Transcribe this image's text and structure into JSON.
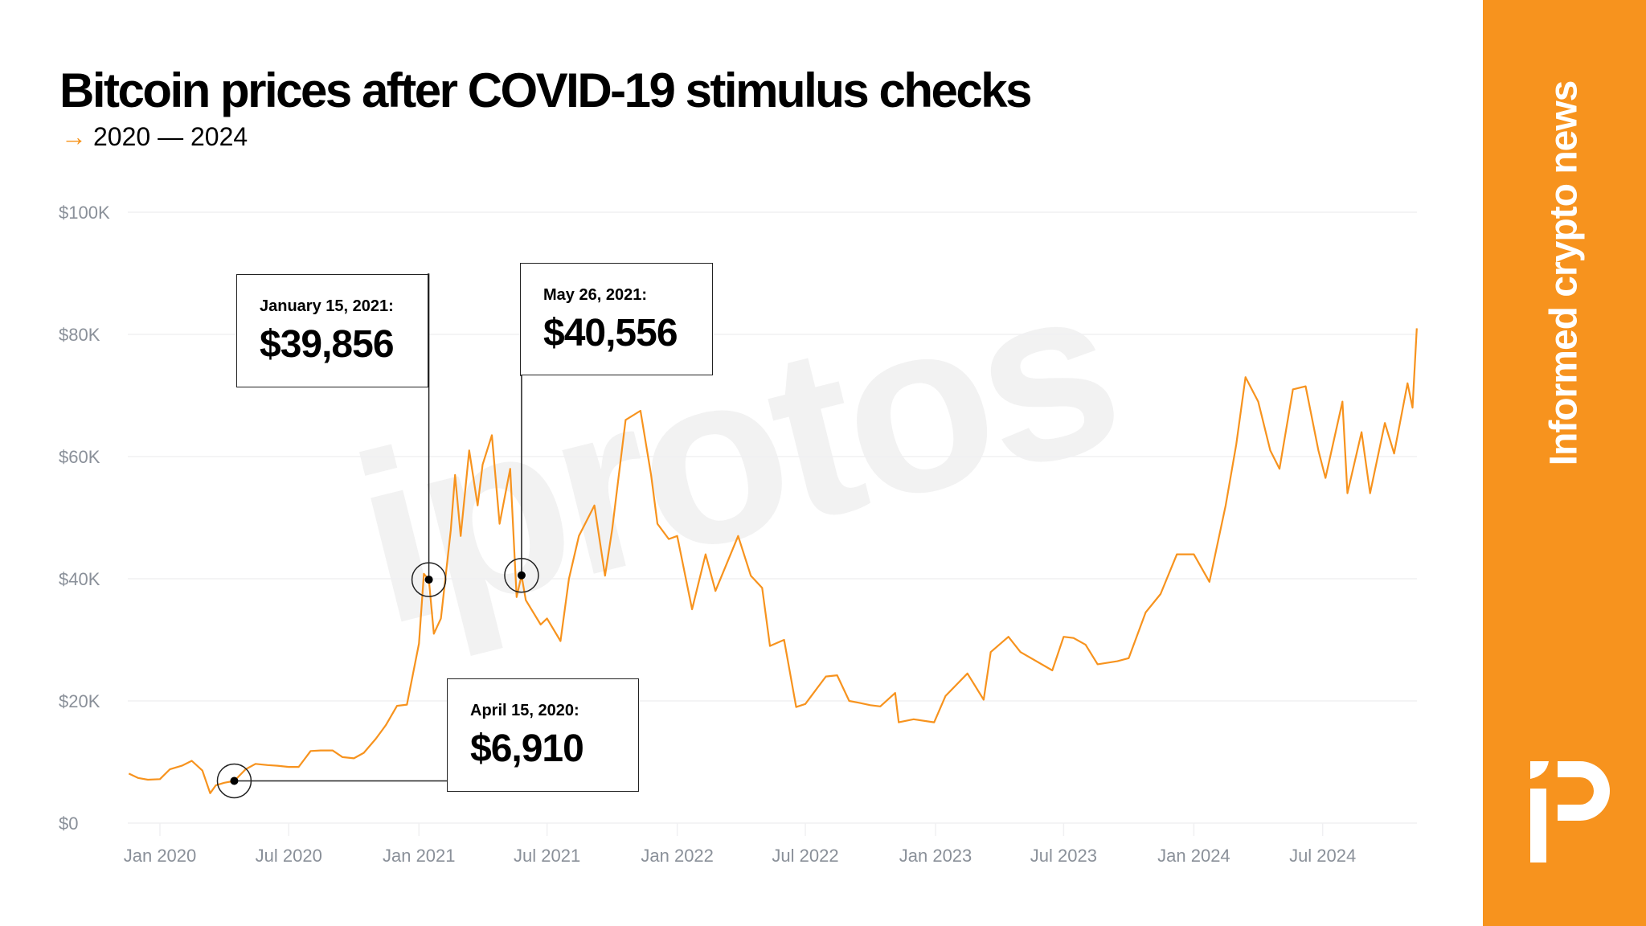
{
  "header": {
    "title": "Bitcoin prices after COVID-19 stimulus checks",
    "subtitle": "2020 — 2024",
    "subtitle_icon": "arrow-right-icon"
  },
  "brand": {
    "tagline": "Informed crypto news",
    "watermark": "iprotos",
    "logo": "protos-logo",
    "accent": "#f7931e"
  },
  "chart_data": {
    "type": "line",
    "title": "Bitcoin prices after COVID-19 stimulus checks",
    "xlabel": "",
    "ylabel": "",
    "ylim": [
      0,
      100000
    ],
    "y_ticks": [
      {
        "v": 0,
        "label": "$0"
      },
      {
        "v": 20000,
        "label": "$20K"
      },
      {
        "v": 40000,
        "label": "$40K"
      },
      {
        "v": 60000,
        "label": "$60K"
      },
      {
        "v": 80000,
        "label": "$80K"
      },
      {
        "v": 100000,
        "label": "$100K"
      }
    ],
    "x_ticks": [
      {
        "d": "2020-01-01",
        "label": "Jan 2020"
      },
      {
        "d": "2020-07-01",
        "label": "Jul 2020"
      },
      {
        "d": "2021-01-01",
        "label": "Jan 2021"
      },
      {
        "d": "2021-07-01",
        "label": "Jul 2021"
      },
      {
        "d": "2022-01-01",
        "label": "Jan 2022"
      },
      {
        "d": "2022-07-01",
        "label": "Jul 2022"
      },
      {
        "d": "2023-01-01",
        "label": "Jan 2023"
      },
      {
        "d": "2023-07-01",
        "label": "Jul 2023"
      },
      {
        "d": "2024-01-01",
        "label": "Jan 2024"
      },
      {
        "d": "2024-07-01",
        "label": "Jul 2024"
      }
    ],
    "grid": true,
    "line_color": "#f7931e",
    "series": [
      {
        "x": [
          "2019-11-18",
          "2019-12-01",
          "2019-12-15",
          "2020-01-01",
          "2020-01-15",
          "2020-02-01",
          "2020-02-15",
          "2020-03-01",
          "2020-03-12",
          "2020-03-20",
          "2020-04-01",
          "2020-04-15",
          "2020-05-01",
          "2020-05-15",
          "2020-06-01",
          "2020-06-15",
          "2020-07-01",
          "2020-07-15",
          "2020-08-01",
          "2020-08-15",
          "2020-09-01",
          "2020-09-15",
          "2020-10-01",
          "2020-10-15",
          "2020-11-01",
          "2020-11-15",
          "2020-12-01",
          "2020-12-15",
          "2021-01-01",
          "2021-01-08",
          "2021-01-15",
          "2021-01-22",
          "2021-02-01",
          "2021-02-15",
          "2021-02-21",
          "2021-03-01",
          "2021-03-13",
          "2021-03-25",
          "2021-04-01",
          "2021-04-14",
          "2021-04-25",
          "2021-05-10",
          "2021-05-19",
          "2021-05-26",
          "2021-06-01",
          "2021-06-22",
          "2021-07-01",
          "2021-07-20",
          "2021-08-01",
          "2021-08-15",
          "2021-09-06",
          "2021-09-21",
          "2021-10-01",
          "2021-10-20",
          "2021-11-10",
          "2021-11-25",
          "2021-12-04",
          "2021-12-20",
          "2022-01-01",
          "2022-01-22",
          "2022-02-10",
          "2022-02-24",
          "2022-03-28",
          "2022-04-15",
          "2022-05-01",
          "2022-05-12",
          "2022-06-01",
          "2022-06-18",
          "2022-07-01",
          "2022-07-30",
          "2022-08-15",
          "2022-09-01",
          "2022-09-15",
          "2022-10-01",
          "2022-10-15",
          "2022-11-05",
          "2022-11-10",
          "2022-12-01",
          "2022-12-30",
          "2023-01-15",
          "2023-02-15",
          "2023-03-10",
          "2023-03-20",
          "2023-04-14",
          "2023-05-01",
          "2023-06-15",
          "2023-07-01",
          "2023-07-15",
          "2023-08-01",
          "2023-08-18",
          "2023-09-15",
          "2023-10-01",
          "2023-10-25",
          "2023-11-15",
          "2023-12-08",
          "2024-01-01",
          "2024-01-23",
          "2024-02-15",
          "2024-03-01",
          "2024-03-14",
          "2024-04-01",
          "2024-04-18",
          "2024-05-01",
          "2024-05-20",
          "2024-06-07",
          "2024-06-25",
          "2024-07-05",
          "2024-07-29",
          "2024-08-05",
          "2024-08-25",
          "2024-09-06",
          "2024-09-27",
          "2024-10-10",
          "2024-10-29",
          "2024-11-05",
          "2024-11-11"
        ],
        "y": [
          8100,
          7400,
          7100,
          7200,
          8800,
          9400,
          10200,
          8600,
          4900,
          6200,
          6600,
          6910,
          8800,
          9700,
          9500,
          9400,
          9200,
          9200,
          11800,
          11900,
          11900,
          10800,
          10600,
          11500,
          13800,
          16000,
          19200,
          19400,
          29400,
          40800,
          39856,
          31000,
          33500,
          48000,
          57000,
          47000,
          61000,
          52000,
          58700,
          63500,
          49000,
          58000,
          37000,
          40556,
          36500,
          32500,
          33500,
          29800,
          40000,
          47000,
          52000,
          40500,
          48000,
          66000,
          67500,
          57000,
          49000,
          46500,
          47000,
          35000,
          44000,
          38000,
          47000,
          40500,
          38500,
          29000,
          30000,
          19000,
          19500,
          24000,
          24200,
          20000,
          19700,
          19300,
          19100,
          21300,
          16500,
          17000,
          16500,
          20800,
          24500,
          20200,
          28000,
          30500,
          28000,
          25000,
          30500,
          30300,
          29200,
          26000,
          26500,
          27000,
          34500,
          37500,
          44000,
          44000,
          39500,
          52000,
          62000,
          73000,
          69000,
          61000,
          58000,
          71000,
          71500,
          61000,
          56500,
          69000,
          54000,
          64000,
          54000,
          65500,
          60500,
          72000,
          68000,
          81000
        ]
      }
    ],
    "annotations": [
      {
        "date": "2021-01-15",
        "label": "January 15, 2021:",
        "value": 39856,
        "value_label": "$39,856"
      },
      {
        "date": "2021-05-26",
        "label": "May 26, 2021:",
        "value": 40556,
        "value_label": "$40,556"
      },
      {
        "date": "2020-04-15",
        "label": "April 15, 2020:",
        "value": 6910,
        "value_label": "$6,910"
      }
    ]
  }
}
